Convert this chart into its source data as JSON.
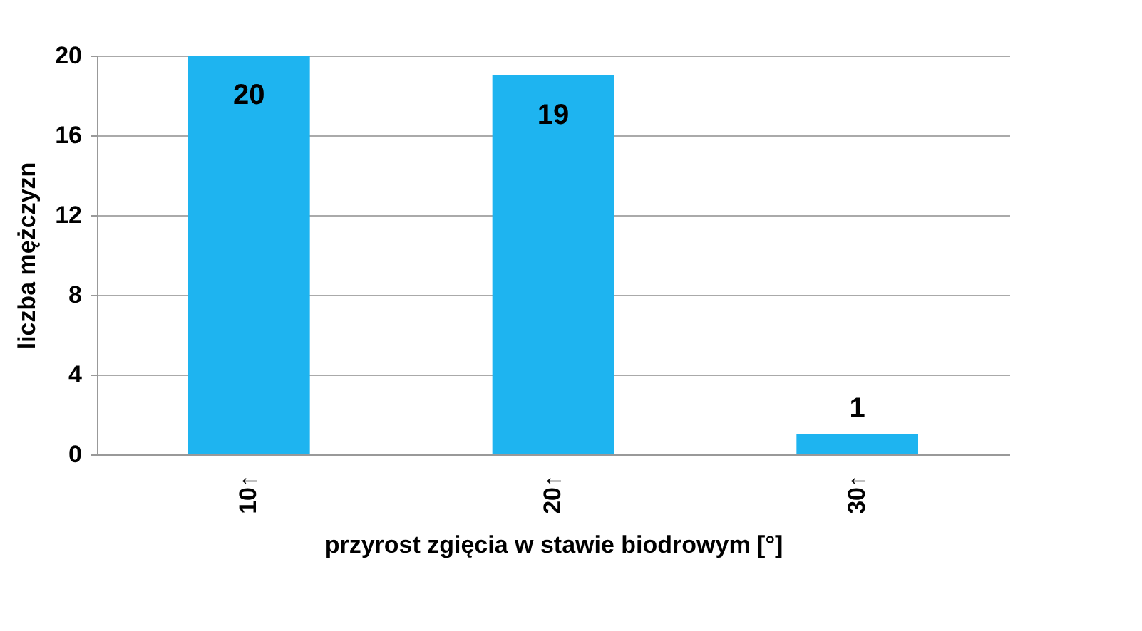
{
  "chart_data": {
    "type": "bar",
    "xlabel": "przyrost  zgięcia  w stawie biodrowym  [°]",
    "ylabel": "liczba mężczyzn",
    "categories": [
      "10↑",
      "20↑",
      "30↑"
    ],
    "values": [
      20,
      19,
      1
    ],
    "color": "#1eb4f0",
    "ylim": [
      0,
      20
    ],
    "yticks": [
      0,
      4,
      8,
      12,
      16,
      20
    ],
    "grid": "y",
    "data_labels": true
  }
}
